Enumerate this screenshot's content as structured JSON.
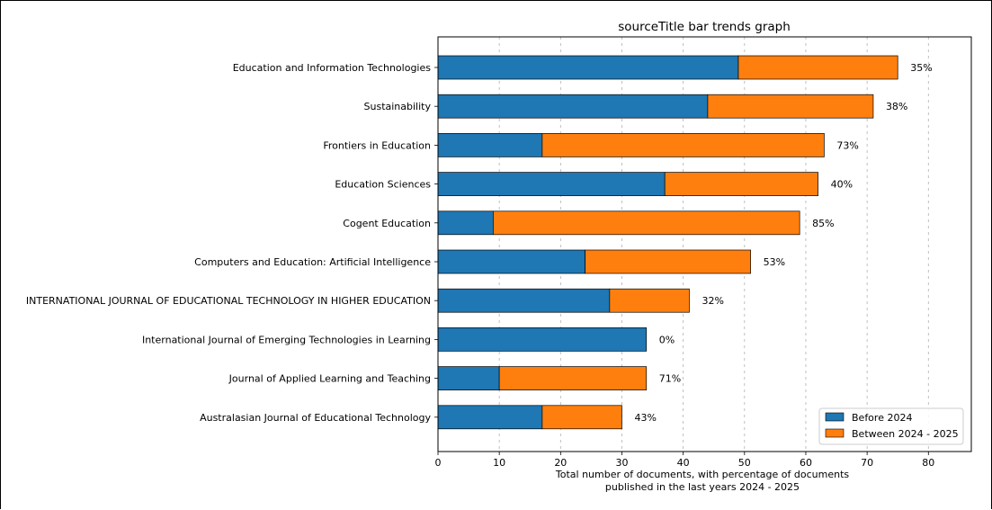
{
  "chart_data": {
    "type": "bar",
    "orientation": "horizontal",
    "stacked": true,
    "title": "sourceTitle bar trends graph",
    "xlabel_lines": [
      "Total number of documents, with percentage of documents",
      "published in the last years 2024 - 2025"
    ],
    "xlim": [
      0,
      87
    ],
    "xticks": [
      0,
      10,
      20,
      30,
      40,
      50,
      60,
      70,
      80
    ],
    "grid": "x, dashed",
    "legend_position": "lower-right",
    "categories": [
      "Education and Information Technologies",
      "Sustainability",
      "Frontiers in Education",
      "Education Sciences",
      "Cogent Education",
      "Computers and Education: Artificial Intelligence",
      "INTERNATIONAL JOURNAL OF EDUCATIONAL TECHNOLOGY IN HIGHER EDUCATION",
      "International Journal of Emerging Technologies in Learning",
      "Journal of Applied Learning and Teaching",
      "Australasian Journal of Educational Technology"
    ],
    "series": [
      {
        "name": "Before 2024",
        "color": "#1f77b4",
        "values": [
          49,
          44,
          17,
          37,
          9,
          24,
          28,
          34,
          10,
          17
        ]
      },
      {
        "name": "Between 2024 - 2025",
        "color": "#ff7f0e",
        "values": [
          26,
          27,
          46,
          25,
          50,
          27,
          13,
          0,
          24,
          13
        ]
      }
    ],
    "percent_labels": [
      "35%",
      "38%",
      "73%",
      "40%",
      "85%",
      "53%",
      "32%",
      "0%",
      "71%",
      "43%"
    ]
  }
}
